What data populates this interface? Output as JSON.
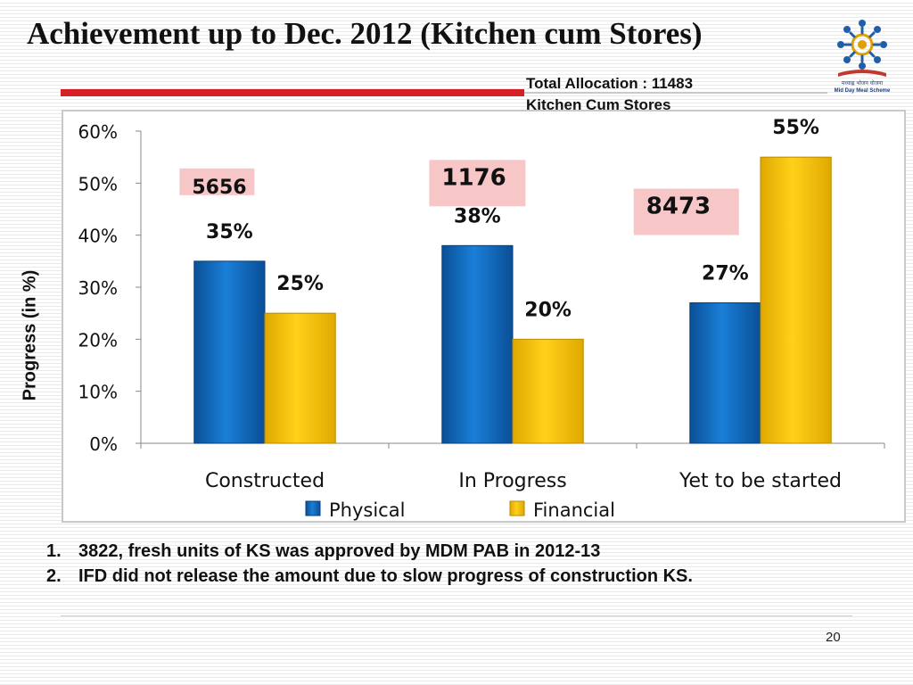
{
  "slide": {
    "title": "Achievement up to Dec. 2012  (Kitchen cum Stores)",
    "allocation_line1": "Total Allocation : 11483",
    "allocation_line2": "Kitchen Cum Stores",
    "logo_text_line1": "मध्याह्न भोजन योजना",
    "logo_text_line2": "Mid Day Meal Scheme",
    "page_number": "20"
  },
  "notes": [
    {
      "num": "1.",
      "text": "3822, fresh units of KS was approved by MDM PAB in 2012-13"
    },
    {
      "num": "2.",
      "text": "IFD did not release the amount due to slow  progress of  construction KS."
    }
  ],
  "chart_data": {
    "type": "bar",
    "categories": [
      "Constructed",
      "In Progress",
      "Yet to be started"
    ],
    "series": [
      {
        "name": "Physical",
        "values": [
          35,
          38,
          27
        ],
        "labels": [
          "35%",
          "38%",
          "27%"
        ],
        "color": "#0f6fc6"
      },
      {
        "name": "Financial",
        "values": [
          25,
          20,
          55
        ],
        "labels": [
          "25%",
          "20%",
          "55%"
        ],
        "color": "#ffc000"
      }
    ],
    "ylim": [
      0,
      60
    ],
    "yticks": [
      "0%",
      "10%",
      "20%",
      "30%",
      "40%",
      "50%",
      "60%"
    ],
    "ylabel": "Progress (in %)",
    "legend": "bottom",
    "count_labels": [
      "5656",
      "1176",
      "8473"
    ],
    "count_label_color": "#f7c6c6"
  }
}
